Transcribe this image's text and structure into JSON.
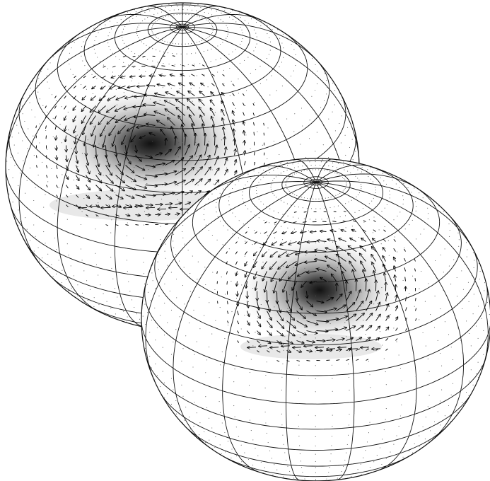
{
  "figure": {
    "kind": "two-sphere vortex field comparison",
    "spheres": [
      {
        "id": "sphere-back",
        "meridians": 16,
        "parallels": 8,
        "vortex_intensity": 1.0,
        "vortex_center_latlon": [
          38,
          5
        ],
        "arrow_grid": "dense"
      },
      {
        "id": "sphere-front",
        "meridians": 16,
        "parallels": 8,
        "vortex_intensity": 1.0,
        "vortex_center_latlon": [
          36,
          18
        ],
        "arrow_grid": "dense"
      }
    ],
    "colors": {
      "background": "#ffffff",
      "grid_line": "#111111",
      "arrow": "#000000",
      "vortex_core": "#111111",
      "dots": "#555555"
    }
  }
}
